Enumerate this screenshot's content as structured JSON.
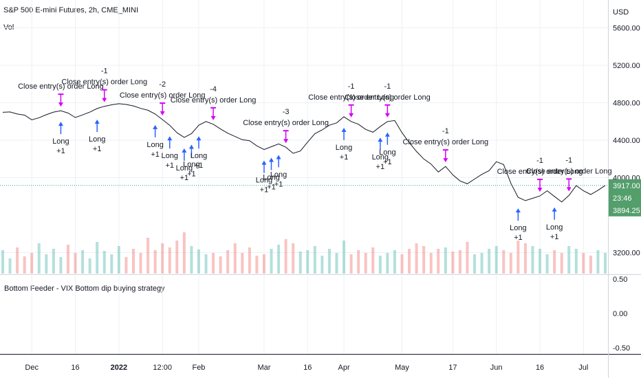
{
  "header": {
    "title": "S&P 500 E-mini Futures, 2h, CME_MINI",
    "volume_label": "Vol",
    "indicator_title": "Bottom Feeder - VIX Bottom dip buying strategy",
    "currency": "USD"
  },
  "colors": {
    "price_line": "#131722",
    "long_marker": "#2962ff",
    "close_marker": "#d500f9",
    "volume_up": "#26a69a",
    "volume_down": "#ef5350",
    "last_price_bg": "#539e6b",
    "grid": "#eef0f3",
    "dotted_level": "#26a69a"
  },
  "price_badges": {
    "last_price": "3917.00",
    "countdown": "23:46",
    "low_price": "3894.25"
  },
  "chart_data": [
    {
      "type": "line",
      "name": "price",
      "ylim": [
        3150,
        5920
      ],
      "y_ticks": [
        "5600.00",
        "5200.00",
        "4800.00",
        "4400.00",
        "4000.00",
        "3200.00"
      ],
      "x_ticks": [
        "Dec",
        "16",
        "2022",
        "12:00",
        "Feb",
        "Mar",
        "16",
        "Apr",
        "May",
        "17",
        "Jun",
        "16",
        "Jul"
      ],
      "x_tick_index": [
        4,
        10,
        16,
        22,
        27,
        36,
        42,
        47,
        55,
        62,
        68,
        74,
        80
      ],
      "values": [
        4698,
        4702,
        4680,
        4668,
        4618,
        4640,
        4672,
        4700,
        4715,
        4690,
        4642,
        4670,
        4700,
        4738,
        4762,
        4778,
        4790,
        4782,
        4766,
        4740,
        4720,
        4680,
        4620,
        4560,
        4480,
        4430,
        4470,
        4560,
        4600,
        4570,
        4520,
        4475,
        4440,
        4405,
        4395,
        4340,
        4300,
        4330,
        4360,
        4325,
        4260,
        4285,
        4380,
        4470,
        4510,
        4560,
        4585,
        4650,
        4600,
        4570,
        4515,
        4485,
        4545,
        4600,
        4610,
        4480,
        4375,
        4280,
        4200,
        4145,
        4060,
        4120,
        4030,
        3965,
        3935,
        3985,
        4035,
        4075,
        4170,
        4140,
        3940,
        3790,
        3755,
        3780,
        3805,
        3860,
        3800,
        3740,
        3810,
        3915,
        3860,
        3820,
        3865,
        3917
      ],
      "volume": [
        34,
        22,
        38,
        25,
        30,
        44,
        28,
        36,
        24,
        42,
        30,
        34,
        22,
        46,
        33,
        28,
        40,
        24,
        36,
        30,
        52,
        34,
        44,
        38,
        48,
        60,
        40,
        35,
        28,
        30,
        25,
        34,
        44,
        30,
        38,
        26,
        28,
        36,
        42,
        50,
        44,
        32,
        34,
        40,
        26,
        36,
        30,
        48,
        28,
        34,
        30,
        38,
        26,
        30,
        34,
        28,
        36,
        44,
        40,
        30,
        36,
        38,
        32,
        34,
        46,
        28,
        30,
        36,
        40,
        34,
        30,
        48,
        44,
        40,
        36,
        28,
        34,
        30,
        40,
        36,
        30,
        26,
        34,
        30
      ],
      "long_entries": [
        {
          "x": 8,
          "text": "Long",
          "sub": "+1"
        },
        {
          "x": 13,
          "text": "Long",
          "sub": "+1"
        },
        {
          "x": 21,
          "text": "Long",
          "sub": "+1"
        },
        {
          "x": 23,
          "text": "Long",
          "sub": "+1"
        },
        {
          "x": 25,
          "text": "Long",
          "sub": "+1"
        },
        {
          "x": 26,
          "text": "Long",
          "sub": "+1"
        },
        {
          "x": 27,
          "text": "Long",
          "sub": "+1"
        },
        {
          "x": 36,
          "text": "Long",
          "sub": "+1"
        },
        {
          "x": 37,
          "text": "Long",
          "sub": "+1"
        },
        {
          "x": 38,
          "text": "Long",
          "sub": "+1"
        },
        {
          "x": 47,
          "text": "Long",
          "sub": "+1"
        },
        {
          "x": 52,
          "text": "Long",
          "sub": "+1"
        },
        {
          "x": 53,
          "text": "Long",
          "sub": "+1"
        },
        {
          "x": 71,
          "text": "Long",
          "sub": "+1"
        },
        {
          "x": 76,
          "text": "Long",
          "sub": "+1"
        }
      ],
      "close_entries": [
        {
          "x": 8,
          "qty": "",
          "text": "Close entry(s) order Long"
        },
        {
          "x": 14,
          "qty": "-1",
          "text": "Close entry(s) order Long"
        },
        {
          "x": 22,
          "qty": "-2",
          "text": "Close entry(s) order Long"
        },
        {
          "x": 29,
          "qty": "-4",
          "text": "Close entry(s) order Long"
        },
        {
          "x": 39,
          "qty": "-3",
          "text": "Close entry(s) order Long"
        },
        {
          "x": 48,
          "qty": "-1",
          "text": "Close entry(s) order Long"
        },
        {
          "x": 53,
          "qty": "-1",
          "text": "Close entry(s) order Long"
        },
        {
          "x": 61,
          "qty": "-1",
          "text": "Close entry(s) order Long"
        },
        {
          "x": 74,
          "qty": "-1",
          "text": "Close entry(s) order Long"
        },
        {
          "x": 78,
          "qty": "-1",
          "text": "Close entry(s) order Long"
        }
      ]
    },
    {
      "type": "line",
      "name": "indicator",
      "y_ticks": [
        "0.50",
        "0.00",
        "-0.50"
      ],
      "ylim": [
        -0.5,
        0.5
      ]
    }
  ]
}
